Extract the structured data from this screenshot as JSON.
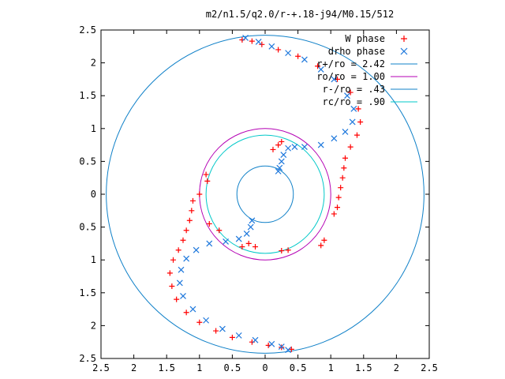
{
  "chart_data": {
    "type": "scatter",
    "title": "m2/n1.5/q2.0/r-+.18-j94/M0.15/512",
    "xlim": [
      2.5,
      -2.5
    ],
    "ylim": [
      -2.5,
      2.5
    ],
    "x_ticks": [
      {
        "v": -2.5,
        "label": "2.5"
      },
      {
        "v": -2,
        "label": "2"
      },
      {
        "v": -1.5,
        "label": "1.5"
      },
      {
        "v": -1,
        "label": "1"
      },
      {
        "v": -0.5,
        "label": "0.5"
      },
      {
        "v": 0,
        "label": "0"
      },
      {
        "v": 0.5,
        "label": "0.5"
      },
      {
        "v": 1,
        "label": "1"
      },
      {
        "v": 1.5,
        "label": "1.5"
      },
      {
        "v": 2,
        "label": "2"
      },
      {
        "v": 2.5,
        "label": "2.5"
      }
    ],
    "y_ticks": [
      {
        "v": 2.5,
        "label": "2.5"
      },
      {
        "v": 2,
        "label": "2"
      },
      {
        "v": 1.5,
        "label": "1.5"
      },
      {
        "v": 1,
        "label": "1"
      },
      {
        "v": 0.5,
        "label": "0.5"
      },
      {
        "v": 0,
        "label": "0"
      },
      {
        "v": -0.5,
        "label": "0.5"
      },
      {
        "v": -1,
        "label": "1"
      },
      {
        "v": -1.5,
        "label": "1.5"
      },
      {
        "v": -2,
        "label": "2"
      },
      {
        "v": -2.5,
        "label": "2.5"
      }
    ],
    "grid": false,
    "legend_position": "top-right",
    "circles": [
      {
        "name": "r+/ro = 2.42",
        "r": 2.42,
        "color": "#0f80c8"
      },
      {
        "name": "ro/ro = 1.00",
        "r": 1.0,
        "color": "#b400b4"
      },
      {
        "name": "r-/ro = .43",
        "r": 0.43,
        "color": "#0f80c8"
      },
      {
        "name": "rc/ro = .90",
        "r": 0.9,
        "color": "#00c8c8"
      }
    ],
    "series": [
      {
        "name": "W phase",
        "marker": "plus",
        "color": "#ff0000",
        "points": [
          [
            0.35,
            2.35
          ],
          [
            0.2,
            2.33
          ],
          [
            0.05,
            2.28
          ],
          [
            -0.2,
            2.2
          ],
          [
            -0.5,
            2.1
          ],
          [
            -0.8,
            1.95
          ],
          [
            -1.1,
            1.75
          ],
          [
            -1.3,
            1.55
          ],
          [
            -1.42,
            1.3
          ],
          [
            -1.45,
            1.1
          ],
          [
            -1.4,
            0.9
          ],
          [
            -1.3,
            0.72
          ],
          [
            -1.22,
            0.55
          ],
          [
            -1.2,
            0.4
          ],
          [
            -1.18,
            0.25
          ],
          [
            -1.15,
            0.1
          ],
          [
            -1.12,
            -0.05
          ],
          [
            -1.1,
            -0.2
          ],
          [
            -1.05,
            -0.3
          ],
          [
            -0.9,
            -0.7
          ],
          [
            -0.85,
            -0.78
          ],
          [
            -0.35,
            -0.85
          ],
          [
            -0.25,
            -0.86
          ],
          [
            -0.25,
            0.8
          ],
          [
            -0.2,
            0.75
          ],
          [
            -0.12,
            0.68
          ],
          [
            0.15,
            -0.8
          ],
          [
            0.25,
            -0.75
          ],
          [
            0.35,
            -0.8
          ],
          [
            0.7,
            -0.55
          ],
          [
            0.85,
            -0.45
          ],
          [
            0.9,
            0.3
          ],
          [
            0.88,
            0.2
          ],
          [
            1.0,
            0.0
          ],
          [
            1.1,
            -0.1
          ],
          [
            1.12,
            -0.25
          ],
          [
            1.15,
            -0.4
          ],
          [
            1.2,
            -0.55
          ],
          [
            1.25,
            -0.7
          ],
          [
            1.32,
            -0.85
          ],
          [
            1.4,
            -1.0
          ],
          [
            1.45,
            -1.2
          ],
          [
            1.42,
            -1.4
          ],
          [
            1.35,
            -1.6
          ],
          [
            1.2,
            -1.8
          ],
          [
            1.0,
            -1.95
          ],
          [
            0.75,
            -2.08
          ],
          [
            0.5,
            -2.18
          ],
          [
            0.2,
            -2.25
          ],
          [
            -0.05,
            -2.3
          ],
          [
            -0.25,
            -2.33
          ],
          [
            -0.4,
            -2.36
          ]
        ]
      },
      {
        "name": "drho phase",
        "marker": "cross",
        "color": "#1e78dc",
        "points": [
          [
            0.3,
            2.38
          ],
          [
            0.1,
            2.32
          ],
          [
            -0.1,
            2.25
          ],
          [
            -0.35,
            2.15
          ],
          [
            -0.6,
            2.05
          ],
          [
            -0.85,
            1.9
          ],
          [
            -1.05,
            1.75
          ],
          [
            -1.25,
            1.5
          ],
          [
            -1.35,
            1.3
          ],
          [
            -1.33,
            1.1
          ],
          [
            -1.22,
            0.95
          ],
          [
            -1.05,
            0.85
          ],
          [
            -0.85,
            0.75
          ],
          [
            -0.6,
            0.72
          ],
          [
            -0.45,
            0.72
          ],
          [
            -0.35,
            0.7
          ],
          [
            -0.28,
            0.6
          ],
          [
            -0.25,
            0.5
          ],
          [
            -0.22,
            0.4
          ],
          [
            -0.2,
            0.35
          ],
          [
            0.2,
            -0.4
          ],
          [
            0.22,
            -0.5
          ],
          [
            0.28,
            -0.6
          ],
          [
            0.4,
            -0.68
          ],
          [
            0.6,
            -0.72
          ],
          [
            0.85,
            -0.75
          ],
          [
            1.05,
            -0.85
          ],
          [
            1.2,
            -0.98
          ],
          [
            1.28,
            -1.15
          ],
          [
            1.3,
            -1.35
          ],
          [
            1.25,
            -1.55
          ],
          [
            1.1,
            -1.75
          ],
          [
            0.9,
            -1.92
          ],
          [
            0.65,
            -2.05
          ],
          [
            0.4,
            -2.15
          ],
          [
            0.15,
            -2.22
          ],
          [
            -0.1,
            -2.28
          ],
          [
            -0.25,
            -2.32
          ],
          [
            -0.35,
            -2.37
          ]
        ]
      }
    ]
  }
}
